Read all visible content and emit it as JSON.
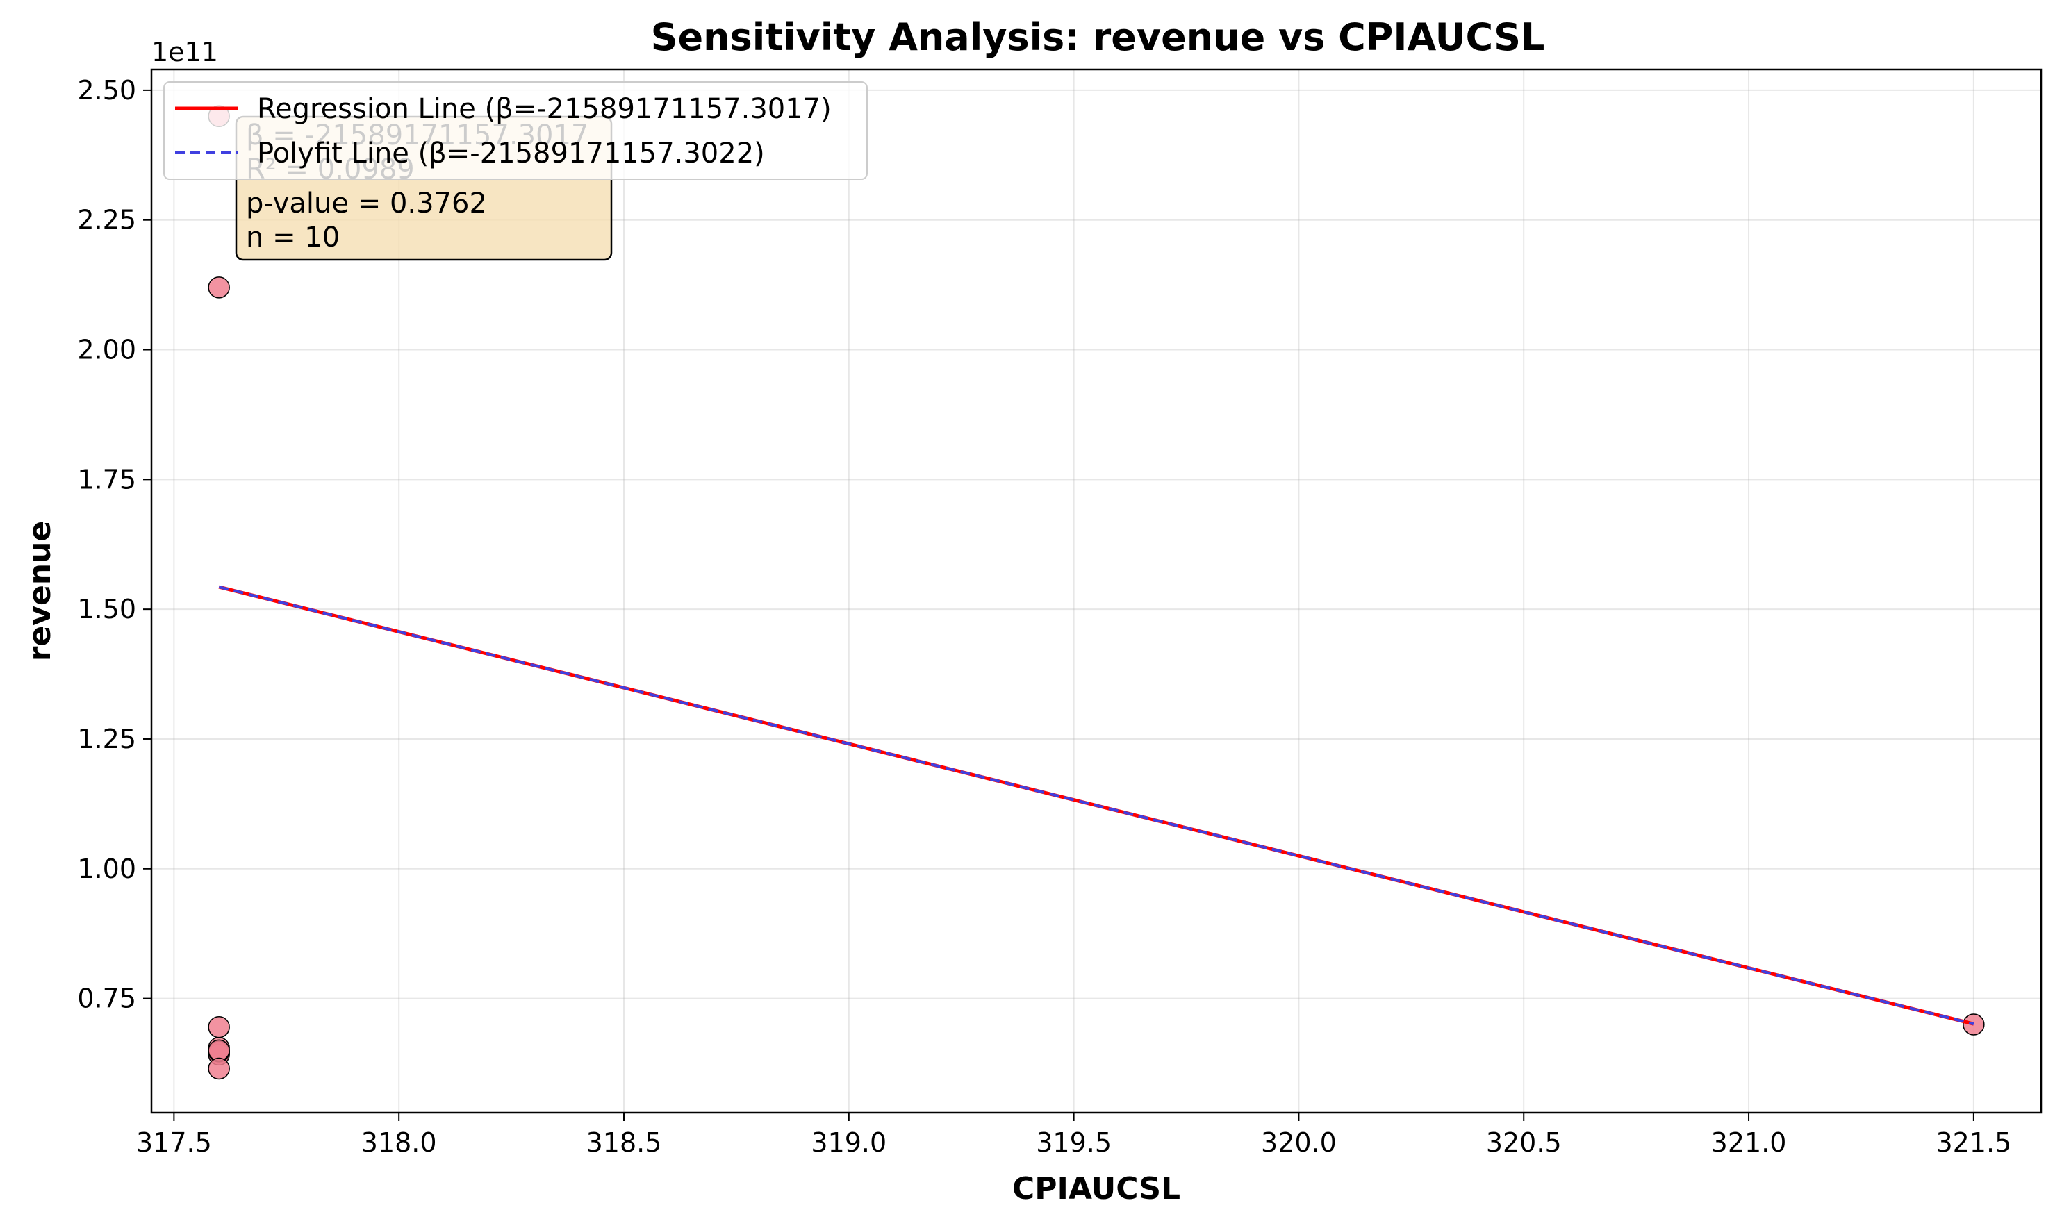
{
  "chart_data": {
    "type": "scatter",
    "title": "Sensitivity Analysis: revenue vs CPIAUCSL",
    "xlabel": "CPIAUCSL",
    "ylabel": "revenue",
    "y_offset_label": "1e11",
    "xlim": [
      317.45,
      321.65
    ],
    "ylim": [
      0.53,
      2.54
    ],
    "x_ticks": [
      317.5,
      318.0,
      318.5,
      319.0,
      319.5,
      320.0,
      320.5,
      321.0,
      321.5
    ],
    "x_tick_labels": [
      "317.5",
      "318.0",
      "318.5",
      "319.0",
      "319.5",
      "320.0",
      "320.5",
      "321.0",
      "321.5"
    ],
    "y_ticks": [
      0.75,
      1.0,
      1.25,
      1.5,
      1.75,
      2.0,
      2.25,
      2.5
    ],
    "y_tick_labels": [
      "0.75",
      "1.00",
      "1.25",
      "1.50",
      "1.75",
      "2.00",
      "2.25",
      "2.50"
    ],
    "grid": true,
    "legend_position": "upper-left",
    "points": {
      "x": [
        317.6,
        317.6,
        317.6,
        317.6,
        317.6,
        317.6,
        317.6,
        317.6,
        317.6,
        321.5
      ],
      "y": [
        2.45,
        2.12,
        0.695,
        0.655,
        0.645,
        0.642,
        0.648,
        0.65,
        0.615,
        0.7
      ],
      "color": "#f08090"
    },
    "series": [
      {
        "name": "Regression Line (β=-21589171157.3017)",
        "color": "#ff0000",
        "style": "solid",
        "x": [
          317.6,
          321.5
        ],
        "y": [
          1.543,
          0.701
        ]
      },
      {
        "name": "Polyfit Line (β=-21589171157.3022)",
        "color": "#4040e0",
        "style": "dashed",
        "x": [
          317.6,
          321.5
        ],
        "y": [
          1.543,
          0.701
        ]
      }
    ],
    "stats_box": {
      "lines": [
        "β = -21589171157.3017",
        "R² = 0.0989",
        "p-value = 0.3762",
        "n = 10"
      ],
      "background": "#f5deb3"
    }
  }
}
